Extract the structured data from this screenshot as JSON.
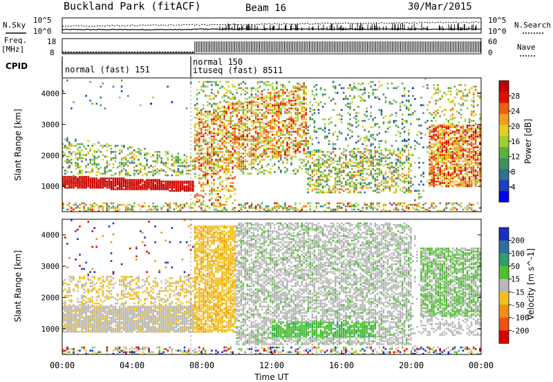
{
  "header": {
    "station": "Buckland Park (fitACF)",
    "beam": "Beam 16",
    "date": "30/Mar/2015"
  },
  "strip_panels": {
    "nsky_label": "N.Sky",
    "nsky_ticks": [
      "10^5",
      "10^0"
    ],
    "nsearch_label": "N.Search",
    "nsearch_ticks": [
      "10^5",
      "10^0"
    ],
    "freq_label_line1": "Freq.",
    "freq_label_line2": "[MHz]",
    "freq_ticks": [
      "18",
      "8"
    ],
    "nave_label": "Nave",
    "nave_ticks": [
      "60",
      "0"
    ],
    "cpid_label": "CPID",
    "cpid_segments": [
      {
        "lines": [
          "normal (fast) 151"
        ],
        "start_hour": 0,
        "end_hour": 7.6
      },
      {
        "lines": [
          "normal 150",
          "ituseq (fast) 8511"
        ],
        "start_hour": 7.6,
        "end_hour": 24
      }
    ]
  },
  "chart_data": [
    {
      "type": "heatmap",
      "title": "",
      "xlabel": "",
      "ylabel": "Slant Range [km]",
      "xlim_hours": [
        0,
        24
      ],
      "ylim": [
        180,
        4500
      ],
      "yticks": [
        1000,
        2000,
        3000,
        4000
      ],
      "colorbar": {
        "label": "Power [dB]",
        "ticks": [
          4,
          8,
          12,
          16,
          20,
          24,
          28
        ],
        "colors": [
          "#0000ff",
          "#1f3fbf",
          "#2f6f8f",
          "#3f8f5f",
          "#5faf3f",
          "#9fcf2f",
          "#e0d020",
          "#f0a018",
          "#f06010",
          "#e01000",
          "#c00000"
        ]
      },
      "approx_echo_regions": [
        {
          "t0": 0,
          "t1": 7.6,
          "r0": 900,
          "r1": 1300,
          "level": "high (24-30 dB)"
        },
        {
          "t0": 0,
          "t1": 5,
          "r0": 1400,
          "r1": 2500,
          "level": "low-medium (4-16 dB)"
        },
        {
          "t0": 7.6,
          "t1": 14,
          "r0": 1500,
          "r1": 4000,
          "level": "medium (12-24 dB)"
        },
        {
          "t0": 21,
          "t1": 24,
          "r0": 1000,
          "r1": 3000,
          "level": "medium-high (16-28 dB)"
        }
      ]
    },
    {
      "type": "heatmap",
      "title": "",
      "xlabel": "Time UT",
      "ylabel": "Slant Range [km]",
      "xlim_hours": [
        0,
        24
      ],
      "ylim": [
        180,
        4500
      ],
      "yticks": [
        1000,
        2000,
        3000,
        4000
      ],
      "xtick_labels": [
        "00:00",
        "04:00",
        "08:00",
        "12:00",
        "16:00",
        "20:00",
        "00:00"
      ],
      "colorbar": {
        "label": "Velocity [m s^-1]",
        "ticks": [
          200,
          100,
          50,
          15,
          -15,
          -50,
          -100,
          -200
        ],
        "colors": [
          "#1830c0",
          "#2f6fa0",
          "#2f9f6f",
          "#50c030",
          "#b8b8b8",
          "#f0c020",
          "#f09010",
          "#f05010",
          "#e00000"
        ]
      },
      "approx_echo_regions": [
        {
          "t0": 0,
          "t1": 7.6,
          "r0": 900,
          "r1": 1800,
          "level": "ground scatter (grey)"
        },
        {
          "t0": 7.6,
          "t1": 10,
          "r0": 1000,
          "r1": 4300,
          "level": "negative (orange)"
        },
        {
          "t0": 10,
          "t1": 20,
          "r0": 500,
          "r1": 4400,
          "level": "ground scatter (grey)"
        },
        {
          "t0": 12,
          "t1": 18,
          "r0": 800,
          "r1": 1200,
          "level": "positive (green)"
        },
        {
          "t0": 20,
          "t1": 24,
          "r0": 1500,
          "r1": 3500,
          "level": "positive (green)"
        }
      ]
    }
  ]
}
